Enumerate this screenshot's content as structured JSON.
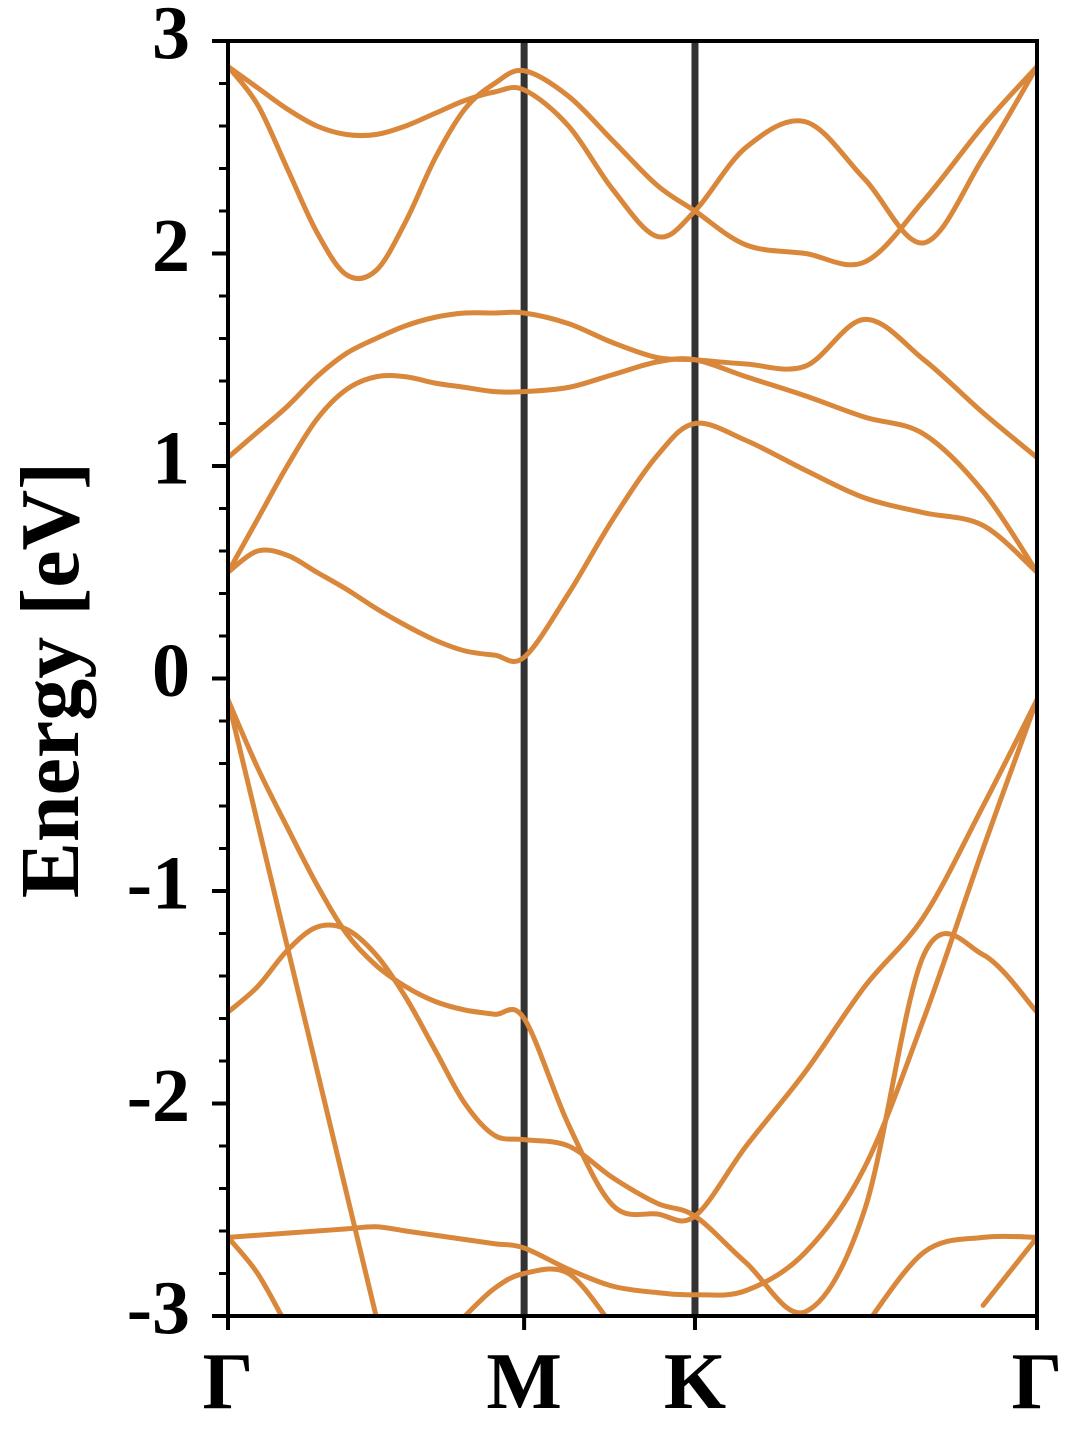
{
  "chart_data": {
    "type": "line",
    "ylabel": "Energy [eV]",
    "x": [
      0,
      0.1,
      0.2,
      0.3,
      0.4,
      0.5,
      0.6,
      0.7,
      0.8,
      0.9,
      1.0,
      1.15,
      1.3,
      1.45,
      1.577,
      1.75,
      1.95,
      2.15,
      2.35,
      2.55,
      2.732
    ],
    "xlim": [
      0,
      2.732
    ],
    "xticks": [
      {
        "value": 0,
        "label": "Γ"
      },
      {
        "value": 1.0,
        "label": "M"
      },
      {
        "value": 1.577,
        "label": "K"
      },
      {
        "value": 2.732,
        "label": "Γ"
      }
    ],
    "xgrid": true,
    "xgrid_color": "#333333",
    "ylim": [
      -3,
      3
    ],
    "yticks": [
      -3,
      -2,
      -1,
      0,
      1,
      2,
      3
    ],
    "minor_yticks": [
      -2.8,
      -2.6,
      -2.4,
      -2.2,
      -1.8,
      -1.6,
      -1.4,
      -1.2,
      -0.8,
      -0.6,
      -0.4,
      -0.2,
      0.2,
      0.4,
      0.6,
      0.8,
      1.2,
      1.4,
      1.6,
      1.8,
      2.2,
      2.4,
      2.6,
      2.8
    ],
    "color": "#d9873a",
    "series": [
      {
        "values": [
          2.88,
          2.7,
          2.4,
          2.1,
          1.9,
          1.92,
          2.15,
          2.45,
          2.68,
          2.8,
          2.86,
          2.74,
          2.53,
          2.32,
          2.2,
          2.04,
          2.0,
          1.96,
          2.25,
          2.6,
          2.88
        ]
      },
      {
        "values": [
          2.88,
          2.78,
          2.68,
          2.6,
          2.56,
          2.56,
          2.6,
          2.66,
          2.72,
          2.76,
          2.77,
          2.6,
          2.3,
          2.08,
          2.2,
          2.5,
          2.62,
          2.35,
          2.05,
          2.45,
          2.88
        ]
      },
      {
        "values": [
          1.04,
          1.16,
          1.28,
          1.42,
          1.53,
          1.6,
          1.66,
          1.7,
          1.72,
          1.72,
          1.72,
          1.67,
          1.58,
          1.51,
          1.5,
          1.48,
          1.47,
          1.69,
          1.5,
          1.25,
          1.04
        ]
      },
      {
        "values": [
          0.5,
          0.75,
          1.0,
          1.22,
          1.36,
          1.42,
          1.42,
          1.39,
          1.37,
          1.35,
          1.35,
          1.37,
          1.43,
          1.49,
          1.5,
          1.42,
          1.33,
          1.23,
          1.15,
          0.88,
          0.5
        ]
      },
      {
        "values": [
          0.5,
          0.6,
          0.58,
          0.5,
          0.42,
          0.33,
          0.25,
          0.18,
          0.13,
          0.11,
          0.1,
          0.4,
          0.75,
          1.05,
          1.2,
          1.12,
          0.98,
          0.85,
          0.78,
          0.72,
          0.5
        ]
      },
      {
        "values": [
          -0.1,
          -0.42,
          -0.7,
          -0.97,
          -1.2,
          -1.35,
          -1.45,
          -1.52,
          -1.56,
          -1.58,
          -1.6,
          -2.1,
          -2.48,
          -2.52,
          -2.53,
          -2.2,
          -1.85,
          -1.45,
          -1.12,
          -0.6,
          -0.1
        ]
      },
      {
        "values": [
          -1.57,
          -1.45,
          -1.28,
          -1.17,
          -1.18,
          -1.3,
          -1.5,
          -1.75,
          -2.0,
          -2.15,
          -2.17,
          -2.2,
          -2.35,
          -2.47,
          -2.53,
          -2.75,
          -2.98,
          -2.5,
          -1.3,
          -1.3,
          -1.57
        ]
      },
      {
        "values": [
          -0.1,
          -0.68,
          -1.26,
          -1.84,
          -2.42,
          -3.0,
          null,
          null,
          null,
          null,
          null,
          null,
          null,
          null,
          null,
          null,
          null,
          null,
          null,
          null,
          null
        ]
      },
      {
        "values": [
          -2.63,
          -2.62,
          -2.61,
          -2.6,
          -2.59,
          -2.58,
          -2.6,
          -2.62,
          -2.64,
          -2.66,
          -2.68,
          -2.78,
          -2.86,
          -2.89,
          -2.9,
          -2.88,
          -2.7,
          -2.3,
          -1.6,
          -0.8,
          -0.1
        ]
      },
      {
        "values": [
          -2.63,
          -2.8,
          -3.05,
          null,
          null,
          null,
          null,
          null,
          -3.0,
          -2.87,
          -2.8,
          -2.8,
          -3.05,
          null,
          null,
          null,
          null,
          null,
          null,
          -2.95,
          -2.63
        ]
      },
      {
        "values": [
          null,
          null,
          null,
          null,
          null,
          null,
          null,
          null,
          null,
          null,
          null,
          null,
          null,
          null,
          null,
          null,
          null,
          -3.05,
          -2.7,
          -2.63,
          -2.63
        ]
      }
    ]
  }
}
